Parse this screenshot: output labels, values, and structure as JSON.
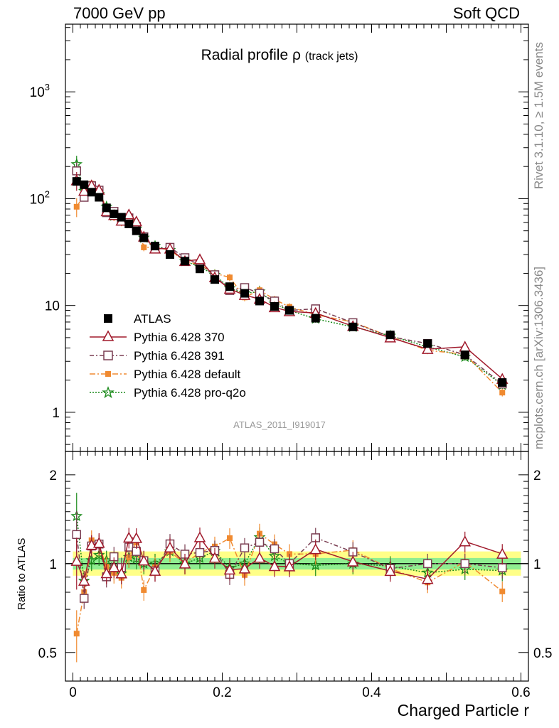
{
  "header": {
    "left": "7000 GeV pp",
    "right": "Soft QCD"
  },
  "side_texts": {
    "rivet": "Rivet 3.1.10, ≥ 1.5M events",
    "mcplots": "mcplots.cern.ch [arXiv:1306.3436]"
  },
  "plot_title": {
    "main": "Radial profile ρ",
    "sub": "(track jets)"
  },
  "watermark": "ATLAS_2011_I919017",
  "ratio_ylabel": "Ratio to ATLAS",
  "xlabel": "Charged Particle r",
  "colors": {
    "atlas": "#000000",
    "p370": "#a01a2c",
    "p391": "#7a3e52",
    "pdefault": "#f08a30",
    "pq2o": "#1a8a1a",
    "band_inner": "#90ee90",
    "band_outer": "#ffff88"
  },
  "legend": [
    {
      "key": "atlas",
      "label": "ATLAS",
      "icon": "filled-square-marker"
    },
    {
      "key": "p370",
      "label": "Pythia 6.428 370",
      "icon": "open-triangle-marker"
    },
    {
      "key": "p391",
      "label": "Pythia 6.428 391",
      "icon": "open-square-marker"
    },
    {
      "key": "pdefault",
      "label": "Pythia 6.428 default",
      "icon": "filled-small-square-marker"
    },
    {
      "key": "pq2o",
      "label": "Pythia 6.428 pro-q2o",
      "icon": "star-marker"
    }
  ],
  "chart_data": {
    "type": "line",
    "x_ticks": [
      "0",
      "0.2",
      "0.4",
      "0.6"
    ],
    "xlim": [
      -0.01,
      0.61
    ],
    "main_panel": {
      "yscale": "log",
      "ylim": [
        0.43,
        4300
      ],
      "y_ticks": [
        "1",
        "10",
        "10^2",
        "10^3"
      ]
    },
    "ratio_panel": {
      "yscale": "log",
      "ylim": [
        0.4,
        2.4
      ],
      "y_ticks": [
        "0.5",
        "1",
        "2"
      ],
      "band_inner": [
        0.955,
        1.045
      ],
      "band_outer": [
        0.91,
        1.1
      ]
    },
    "x": [
      0.005,
      0.015,
      0.025,
      0.035,
      0.045,
      0.055,
      0.065,
      0.075,
      0.085,
      0.095,
      0.11,
      0.13,
      0.15,
      0.17,
      0.19,
      0.21,
      0.23,
      0.25,
      0.27,
      0.29,
      0.325,
      0.375,
      0.425,
      0.475,
      0.525,
      0.575
    ],
    "series": [
      {
        "key": "atlas",
        "name": "ATLAS",
        "values": [
          145,
          135,
          115,
          103,
          82,
          72,
          67,
          58,
          50,
          43,
          36,
          30,
          26,
          22,
          17.5,
          15,
          13,
          11,
          9.8,
          9.0,
          7.6,
          6.3,
          5.3,
          4.4,
          3.45,
          1.9
        ]
      },
      {
        "key": "p370",
        "name": "Pythia 6.428 370",
        "values": [
          148,
          118,
          133,
          121,
          76,
          70,
          62,
          71,
          61,
          44,
          34,
          34,
          26,
          27,
          18.3,
          14.3,
          12.5,
          11.5,
          9.6,
          8.8,
          8.5,
          6.4,
          5.0,
          3.9,
          4.1,
          2.05
        ]
      },
      {
        "key": "p391",
        "name": "Pythia 6.428 391",
        "values": [
          182,
          103,
          132,
          120,
          74,
          76,
          65,
          66,
          55,
          44,
          34,
          35,
          28,
          24,
          19.4,
          13.8,
          14.7,
          13.0,
          11.0,
          9.0,
          9.3,
          6.9,
          5.1,
          4.4,
          3.45,
          1.84
        ]
      },
      {
        "key": "pdefault",
        "name": "Pythia 6.428 default",
        "values": [
          84,
          108,
          138,
          119,
          80,
          67,
          60,
          61,
          59,
          35,
          35,
          33,
          26,
          24,
          20,
          18.3,
          11.9,
          13.9,
          11.4,
          9.7,
          8.2,
          7.0,
          5.1,
          3.8,
          3.5,
          1.53
        ]
      },
      {
        "key": "pq2o",
        "name": "Pythia 6.428 pro-q2o",
        "values": [
          210,
          118,
          118,
          110,
          84,
          69,
          62,
          61,
          52,
          43,
          36,
          33,
          26,
          23,
          19.3,
          14.5,
          13.0,
          13.5,
          10.4,
          9.0,
          7.5,
          6.3,
          5.2,
          4.1,
          3.3,
          1.8
        ]
      }
    ]
  }
}
